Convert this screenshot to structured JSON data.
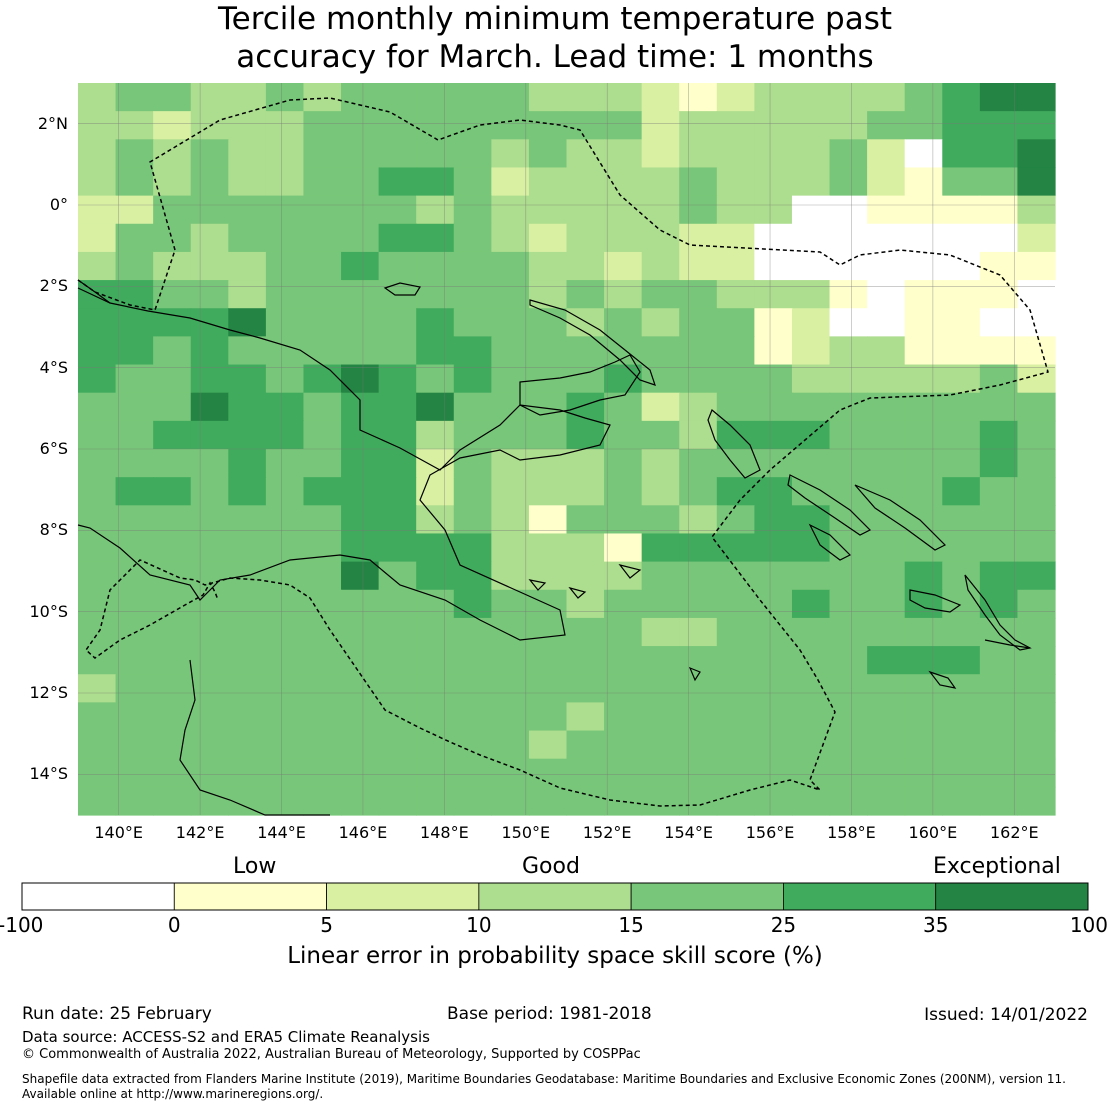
{
  "title": {
    "line1": "Tercile monthly minimum temperature past",
    "line2": "accuracy for March. Lead time: 1 months"
  },
  "map": {
    "lon_range": [
      139,
      163
    ],
    "lat_range": [
      -15,
      3
    ],
    "cell_size_deg": 0.833,
    "lat_ticks": [
      "2°N",
      "0°",
      "2°S",
      "4°S",
      "6°S",
      "8°S",
      "10°S",
      "12°S",
      "14°S"
    ],
    "lon_ticks": [
      "140°E",
      "142°E",
      "144°E",
      "146°E",
      "148°E",
      "150°E",
      "152°E",
      "154°E",
      "156°E",
      "158°E",
      "160°E",
      "162°E"
    ],
    "gridlines": true,
    "grid_rows_north_to_south": [
      "34433434444433321233334566",
      "33233344444444423333344555",
      "34343344444343323333420556",
      "34343344554233334333421446",
      "22444444434333334330011113",
      "24434444554323332200000002",
      "34333445444433232200000011",
      "55443444444434344333101110",
      "55556444454443434412001100",
      "55454444455444444412331111",
      "54455456545444544443333342",
      "44465545564445423444444444",
      "44555545534445443555444454",
      "44445445524333434444444454",
      "45545455524333434554444544",
      "44444445534314443455444444",
      "44444445555333155555444444",
      "44444446455333344444445455",
      "44444444445443444445445454",
      "44444444444444433444444444",
      "44444444444444444444455544",
      "34444444444444444444444444",
      "44444444444443444444444444",
      "44444444444434444444444444",
      "44444444444444444444444444",
      "44444444444444444444444444"
    ]
  },
  "legend": {
    "category_labels": [
      "Low",
      "Good",
      "Exceptional"
    ],
    "ticks": [
      "-100",
      "0",
      "5",
      "10",
      "15",
      "25",
      "35",
      "100"
    ],
    "colors": [
      "#ffffff",
      "#ffffcc",
      "#d9f0a3",
      "#addd8e",
      "#78c679",
      "#41ab5d",
      "#238443"
    ],
    "label": "Linear error in probability space skill score (%)"
  },
  "footer": {
    "run_date": "Run date: 25 February",
    "base_period": "Base period: 1981-2018",
    "issued": "Issued: 14/01/2022",
    "data_source": "Data source: ACCESS-S2 and ERA5 Climate Reanalysis",
    "copyright": "© Commonwealth of Australia 2022, Australian Bureau of Meteorology, Supported by COSPPac",
    "shapefile_1": "Shapefile data extracted from Flanders Marine Institute (2019), Maritime Boundaries Geodatabase: Maritime Boundaries and Exclusive Economic Zones (200NM), version 11.",
    "shapefile_2": "Available online at http://www.marineregions.org/."
  }
}
